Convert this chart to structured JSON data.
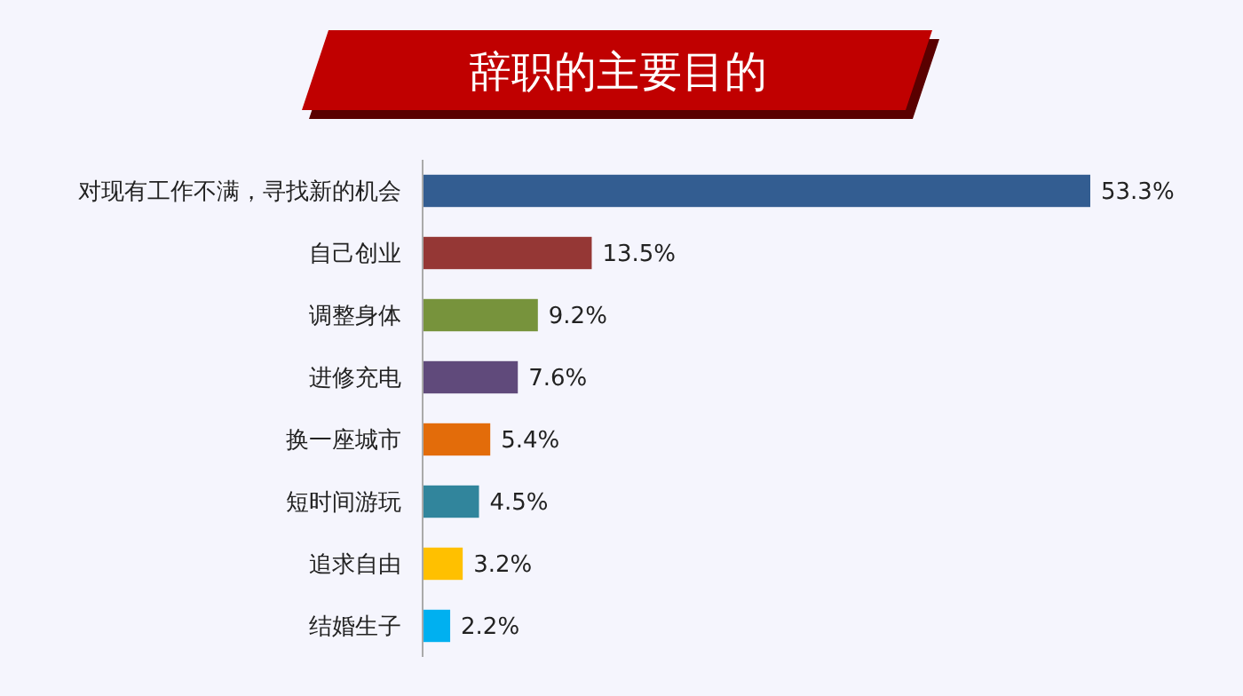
{
  "chart_data": {
    "type": "bar",
    "orientation": "horizontal",
    "title": "辞职的主要目的",
    "categories": [
      "对现有工作不满，寻找新的机会",
      "自己创业",
      "调整身体",
      "进修充电",
      "换一座城市",
      "短时间游玩",
      "追求自由",
      "结婚生子"
    ],
    "values": [
      53.3,
      13.5,
      9.2,
      7.6,
      5.4,
      4.5,
      3.2,
      2.2
    ],
    "colors": [
      "#335d91",
      "#953735",
      "#77933c",
      "#604a7b",
      "#e36c0a",
      "#31859c",
      "#ffc000",
      "#00b0f0"
    ],
    "value_labels": [
      "53.3%",
      "13.5%",
      "9.2%",
      "7.6%",
      "5.4%",
      "4.5%",
      "3.2%",
      "2.2%"
    ]
  }
}
